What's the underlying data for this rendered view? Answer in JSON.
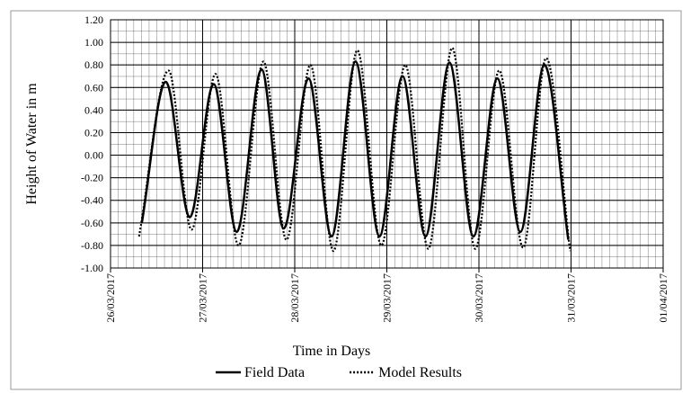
{
  "chart_data": {
    "type": "line",
    "xlabel": "Time in Days",
    "ylabel": "Height of Water in m",
    "xlim": [
      0,
      6
    ],
    "ylim": [
      -1,
      1.2
    ],
    "xticks": [
      {
        "value": 0,
        "label": "26/03/2017"
      },
      {
        "value": 1,
        "label": "27/03/2017"
      },
      {
        "value": 2,
        "label": "28/03/2017"
      },
      {
        "value": 3,
        "label": "29/03/2017"
      },
      {
        "value": 4,
        "label": "30/03/2017"
      },
      {
        "value": 5,
        "label": "31/03/2017"
      },
      {
        "value": 6,
        "label": "01/04/2017"
      }
    ],
    "yticks": [
      {
        "value": -1,
        "label": "-1.00"
      },
      {
        "value": -0.8,
        "label": "-0.80"
      },
      {
        "value": -0.6,
        "label": "-0.60"
      },
      {
        "value": -0.4,
        "label": "-0.40"
      },
      {
        "value": -0.2,
        "label": "-0.20"
      },
      {
        "value": 0,
        "label": "0.00"
      },
      {
        "value": 0.2,
        "label": "0.20"
      },
      {
        "value": 0.4,
        "label": "0.40"
      },
      {
        "value": 0.6,
        "label": "0.60"
      },
      {
        "value": 0.8,
        "label": "0.80"
      },
      {
        "value": 1,
        "label": "1.00"
      },
      {
        "value": 1.2,
        "label": "1.20"
      }
    ],
    "grid": true,
    "legend": "bottom",
    "series": [
      {
        "name": "Field Data",
        "color": "#000000",
        "line_style": "solid",
        "x": [
          0.34,
          0.6,
          0.86,
          1.12,
          1.37,
          1.64,
          1.88,
          2.15,
          2.4,
          2.66,
          2.92,
          3.17,
          3.42,
          3.68,
          3.94,
          4.2,
          4.45,
          4.71,
          4.97
        ],
        "values": [
          -0.6,
          0.65,
          -0.55,
          0.63,
          -0.68,
          0.76,
          -0.65,
          0.68,
          -0.72,
          0.83,
          -0.72,
          0.7,
          -0.72,
          0.82,
          -0.72,
          0.68,
          -0.68,
          0.8,
          -0.75
        ]
      },
      {
        "name": "Model Results",
        "color": "#000000",
        "line_style": "dotted",
        "x": [
          0.31,
          0.63,
          0.88,
          1.14,
          1.39,
          1.66,
          1.91,
          2.17,
          2.42,
          2.68,
          2.94,
          3.2,
          3.45,
          3.71,
          3.96,
          4.22,
          4.48,
          4.73,
          4.99
        ],
        "values": [
          -0.72,
          0.75,
          -0.66,
          0.72,
          -0.8,
          0.83,
          -0.75,
          0.8,
          -0.85,
          0.93,
          -0.8,
          0.8,
          -0.83,
          0.95,
          -0.83,
          0.75,
          -0.82,
          0.86,
          -0.85
        ]
      }
    ]
  }
}
